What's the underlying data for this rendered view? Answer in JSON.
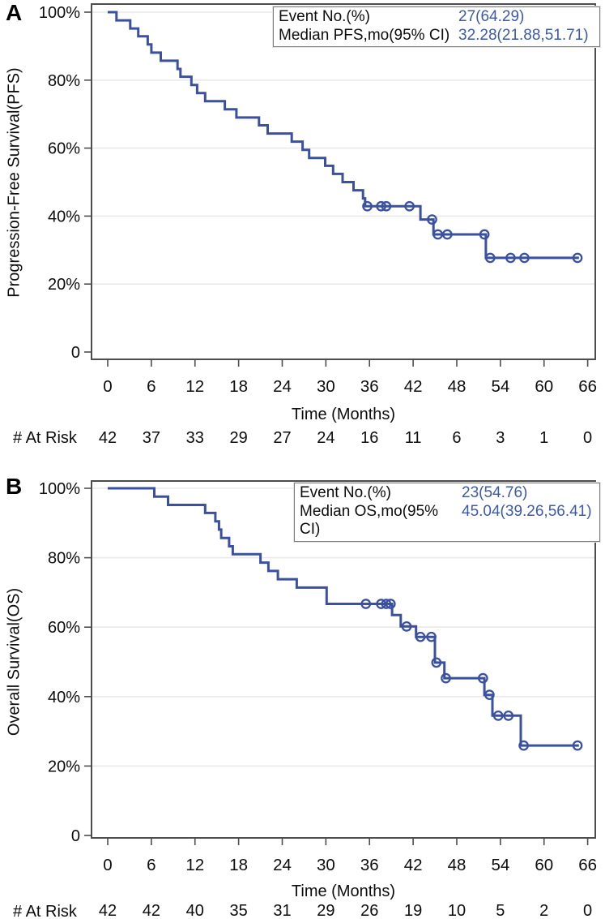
{
  "figure": {
    "panels": [
      {
        "label": "A",
        "y_axis_title": "Progression-Free Survival(PFS)",
        "x_axis_title": "Time (Months)",
        "at_risk_label": "# At Risk",
        "legend": {
          "rows": [
            {
              "label": "Event No.(%)",
              "value": "27(64.29)"
            },
            {
              "label": "Median PFS,mo(95% CI)",
              "value": "32.28(21.88,51.71)"
            }
          ]
        }
      },
      {
        "label": "B",
        "y_axis_title": "Overall Survival(OS)",
        "x_axis_title": "Time (Months)",
        "at_risk_label": "# At Risk",
        "legend": {
          "rows": [
            {
              "label": "Event No.(%)",
              "value": "23(54.76)"
            },
            {
              "label": "Median OS,mo(95% CI)",
              "value": "45.04(39.26,56.41)"
            }
          ]
        }
      }
    ],
    "colors": {
      "curve": "#3A51A2",
      "legend_value": "#3D5AA8",
      "axis": "#4d4d4d",
      "grid": "#e9e9e9",
      "text": "#0d0d0d"
    }
  },
  "chart_data": [
    {
      "type": "line",
      "subtype": "kaplan_meier_step",
      "panel": "A",
      "title": "Progression-Free Survival (PFS), Kaplan-Meier",
      "xlabel": "Time (Months)",
      "ylabel": "Progression-Free Survival(PFS)",
      "xlim": [
        0,
        66
      ],
      "ylim": [
        0,
        100
      ],
      "x_ticks": [
        0,
        6,
        12,
        18,
        24,
        30,
        36,
        42,
        48,
        54,
        60,
        66
      ],
      "y_ticks": [
        100,
        80,
        60,
        40,
        20,
        0
      ],
      "y_tick_labels": [
        "100%",
        "80%",
        "60%",
        "40%",
        "20%",
        "0"
      ],
      "grid": true,
      "legend_position": "top-right",
      "event_no_pct": "27(64.29)",
      "median_months_ci": "32.28(21.88,51.71)",
      "steps_time_survivalpct": [
        [
          0,
          100
        ],
        [
          1.2,
          97.6
        ],
        [
          3.1,
          95.2
        ],
        [
          4.2,
          92.9
        ],
        [
          5.5,
          90.5
        ],
        [
          6.0,
          88.1
        ],
        [
          7.3,
          85.7
        ],
        [
          9.6,
          83.3
        ],
        [
          10.0,
          81.0
        ],
        [
          11.5,
          78.6
        ],
        [
          12.3,
          76.2
        ],
        [
          13.4,
          73.8
        ],
        [
          16.1,
          71.4
        ],
        [
          17.7,
          69.0
        ],
        [
          20.8,
          66.7
        ],
        [
          22.0,
          64.3
        ],
        [
          25.3,
          61.9
        ],
        [
          26.8,
          59.5
        ],
        [
          27.7,
          57.1
        ],
        [
          29.9,
          54.8
        ],
        [
          31.0,
          52.4
        ],
        [
          32.3,
          50.0
        ],
        [
          33.8,
          47.6
        ],
        [
          35.1,
          45.2
        ],
        [
          35.4,
          42.9
        ],
        [
          43.0,
          39.0
        ],
        [
          44.8,
          34.6
        ],
        [
          52.0,
          27.7
        ]
      ],
      "end_time": 64.8,
      "censor_marks_time_survivalpct": [
        [
          35.7,
          42.9
        ],
        [
          37.6,
          42.9
        ],
        [
          38.3,
          42.9
        ],
        [
          41.5,
          42.9
        ],
        [
          44.6,
          39.0
        ],
        [
          45.4,
          34.6
        ],
        [
          46.7,
          34.6
        ],
        [
          51.8,
          34.6
        ],
        [
          52.6,
          27.7
        ],
        [
          55.4,
          27.7
        ],
        [
          57.3,
          27.7
        ],
        [
          64.6,
          27.7
        ]
      ],
      "at_risk_times": [
        0,
        6,
        12,
        18,
        24,
        30,
        36,
        42,
        48,
        54,
        60,
        66
      ],
      "at_risk_counts": [
        42,
        37,
        33,
        29,
        27,
        24,
        16,
        11,
        6,
        3,
        1,
        0
      ]
    },
    {
      "type": "line",
      "subtype": "kaplan_meier_step",
      "panel": "B",
      "title": "Overall Survival (OS), Kaplan-Meier",
      "xlabel": "Time (Months)",
      "ylabel": "Overall Survival(OS)",
      "xlim": [
        0,
        66
      ],
      "ylim": [
        0,
        100
      ],
      "x_ticks": [
        0,
        6,
        12,
        18,
        24,
        30,
        36,
        42,
        48,
        54,
        60,
        66
      ],
      "y_ticks": [
        100,
        80,
        60,
        40,
        20,
        0
      ],
      "y_tick_labels": [
        "100%",
        "80%",
        "60%",
        "40%",
        "20%",
        "0"
      ],
      "grid": true,
      "legend_position": "top-right",
      "event_no_pct": "23(54.76)",
      "median_months_ci": "45.04(39.26,56.41)",
      "steps_time_survivalpct": [
        [
          0,
          100
        ],
        [
          6.4,
          97.6
        ],
        [
          8.3,
          95.2
        ],
        [
          13.4,
          92.9
        ],
        [
          14.8,
          90.5
        ],
        [
          15.3,
          88.1
        ],
        [
          15.6,
          85.7
        ],
        [
          16.7,
          83.3
        ],
        [
          17.2,
          81.0
        ],
        [
          21.0,
          78.6
        ],
        [
          22.1,
          76.2
        ],
        [
          23.4,
          73.8
        ],
        [
          26.0,
          71.4
        ],
        [
          30.1,
          66.7
        ],
        [
          39.1,
          63.5
        ],
        [
          40.3,
          60.2
        ],
        [
          42.4,
          57.2
        ],
        [
          45.0,
          49.8
        ],
        [
          46.3,
          45.3
        ],
        [
          51.8,
          40.5
        ],
        [
          52.9,
          34.5
        ],
        [
          56.8,
          25.9
        ]
      ],
      "end_time": 64.8,
      "censor_marks_time_survivalpct": [
        [
          35.5,
          66.7
        ],
        [
          37.6,
          66.7
        ],
        [
          38.3,
          66.7
        ],
        [
          38.9,
          66.7
        ],
        [
          41.1,
          60.2
        ],
        [
          43.0,
          57.2
        ],
        [
          44.5,
          57.2
        ],
        [
          45.2,
          49.8
        ],
        [
          46.5,
          45.3
        ],
        [
          51.6,
          45.3
        ],
        [
          52.5,
          40.5
        ],
        [
          53.7,
          34.5
        ],
        [
          55.1,
          34.5
        ],
        [
          57.2,
          25.9
        ],
        [
          64.6,
          25.9
        ]
      ],
      "at_risk_times": [
        0,
        6,
        12,
        18,
        24,
        30,
        36,
        42,
        48,
        54,
        60,
        66
      ],
      "at_risk_counts": [
        42,
        42,
        40,
        35,
        31,
        29,
        26,
        19,
        10,
        5,
        2,
        0
      ]
    }
  ]
}
